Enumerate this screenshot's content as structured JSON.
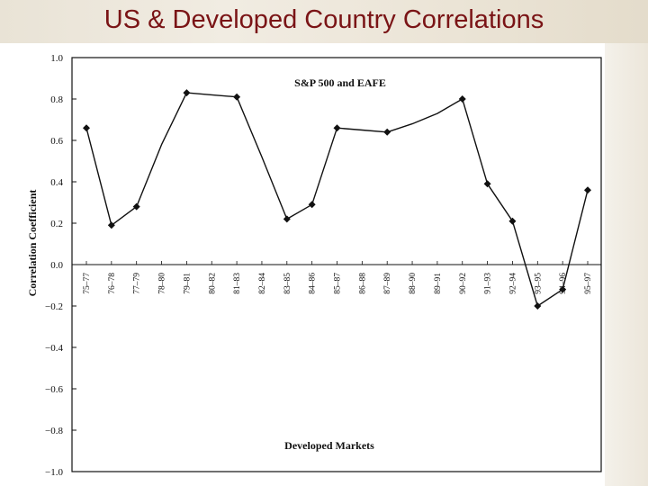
{
  "slide": {
    "title": "US & Developed Country Correlations"
  },
  "chart_data": {
    "type": "line",
    "title": "S&P 500 and EAFE",
    "xlabel": "Developed Markets",
    "ylabel": "Correlation Coefficient",
    "ylim": [
      -1.0,
      1.0
    ],
    "yticks": [
      1.0,
      0.8,
      0.6,
      0.4,
      0.2,
      0.0,
      -0.2,
      -0.4,
      -0.6,
      -0.8,
      -1.0
    ],
    "ytick_labels": [
      "1.0",
      "0.8",
      "0.6",
      "0.4",
      "0.2",
      "0.0",
      "−0.2",
      "−0.4",
      "−0.6",
      "−0.8",
      "−1.0"
    ],
    "categories": [
      "75–77",
      "76–78",
      "77–79",
      "78–80",
      "79–81",
      "80–82",
      "81–83",
      "82–84",
      "83–85",
      "84–86",
      "85–87",
      "86–88",
      "87–89",
      "88–90",
      "89–91",
      "90–92",
      "91–93",
      "92–94",
      "93–95",
      "94–96",
      "95–97"
    ],
    "values": [
      0.66,
      0.19,
      0.28,
      0.58,
      0.83,
      0.82,
      0.81,
      0.52,
      0.22,
      0.29,
      0.66,
      0.65,
      0.64,
      0.68,
      0.73,
      0.8,
      0.39,
      0.21,
      -0.2,
      -0.12,
      0.36
    ],
    "marked": [
      true,
      true,
      true,
      false,
      true,
      false,
      true,
      false,
      true,
      true,
      true,
      false,
      true,
      false,
      false,
      true,
      true,
      true,
      true,
      true,
      true
    ],
    "grid": false,
    "zero_line": true,
    "line_color": "#111111"
  }
}
